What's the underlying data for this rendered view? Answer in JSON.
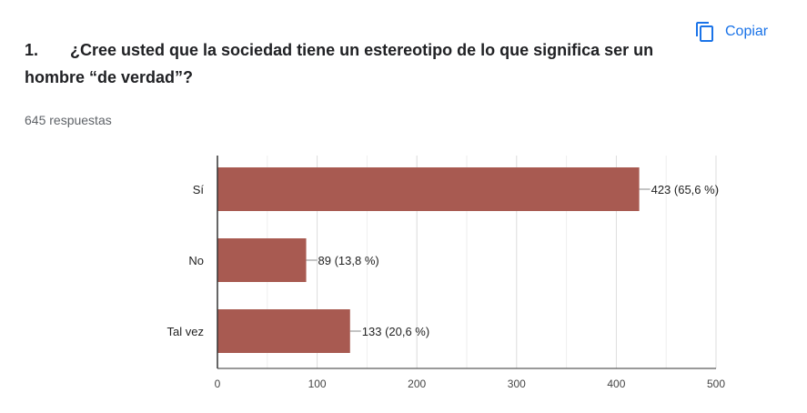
{
  "question": {
    "number": "1.",
    "text": "¿Cree usted que la sociedad tiene un estereotipo de lo que significa ser un hombre “de verdad”?"
  },
  "responses_count": "645 respuestas",
  "copy_button": {
    "label": "Copiar",
    "icon": "copy-icon"
  },
  "colors": {
    "bar": "#a85a51",
    "accent": "#1a73e8",
    "grid": "#e0e0e0",
    "axis": "#333333"
  },
  "chart_data": {
    "type": "bar",
    "orientation": "horizontal",
    "categories": [
      "Sí",
      "No",
      "Tal vez"
    ],
    "values": [
      423,
      89,
      133
    ],
    "data_labels": [
      "423 (65,6 %)",
      "89 (13,8 %)",
      "133 (20,6 %)"
    ],
    "xlim": [
      0,
      500
    ],
    "x_ticks": [
      0,
      100,
      200,
      300,
      400,
      500
    ],
    "grid": true,
    "legend": "none"
  }
}
